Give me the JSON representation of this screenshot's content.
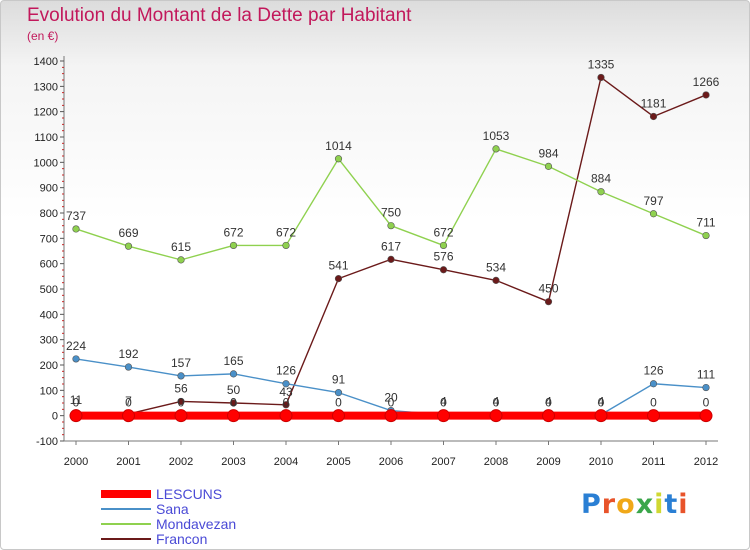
{
  "header": {
    "title": "Evolution du Montant de la Dette par Habitant",
    "unit": "(en €)"
  },
  "logo": {
    "text": "Proxiti",
    "letter_colors": [
      "#2a7fd4",
      "#e8532a",
      "#f0a818",
      "#3aa64a",
      "#d0d832",
      "#2a7fd4",
      "#e8532a"
    ]
  },
  "chart_data": {
    "type": "line",
    "title": "Evolution du Montant de la Dette par Habitant",
    "ylabel": "(en €)",
    "xlabel": "",
    "x": [
      "2000",
      "2001",
      "2002",
      "2003",
      "2004",
      "2005",
      "2006",
      "2007",
      "2008",
      "2009",
      "2010",
      "2011",
      "2012"
    ],
    "ylim": [
      -100,
      1400
    ],
    "yticks": [
      -100,
      0,
      100,
      200,
      300,
      400,
      500,
      600,
      700,
      800,
      900,
      1000,
      1100,
      1200,
      1300,
      1400
    ],
    "grid": false,
    "legend": "bottom-left",
    "series": [
      {
        "name": "LESCUNS",
        "color": "#ff0000",
        "values": [
          0,
          0,
          0,
          0,
          0,
          0,
          0,
          0,
          0,
          0,
          0,
          0,
          0
        ],
        "labels": [
          "0",
          "0",
          "0",
          "0",
          "0",
          "0",
          "0",
          "0",
          "0",
          "0",
          "0",
          "0",
          "0"
        ]
      },
      {
        "name": "Sana",
        "color": "#4a90c8",
        "values": [
          224,
          192,
          157,
          165,
          126,
          91,
          20,
          4,
          4,
          4,
          4,
          126,
          111
        ],
        "labels": [
          "224",
          "192",
          "157",
          "165",
          "126",
          "91",
          "20",
          "4",
          "4",
          "4",
          "4",
          "126",
          "111"
        ]
      },
      {
        "name": "Mondavezan",
        "color": "#8fd14f",
        "values": [
          737,
          669,
          615,
          672,
          672,
          1014,
          750,
          672,
          1053,
          984,
          884,
          797,
          711
        ],
        "labels": [
          "737",
          "669",
          "615",
          "672",
          "672",
          "1014",
          "750",
          "672",
          "1053",
          "984",
          "884",
          "797",
          "711"
        ]
      },
      {
        "name": "Francon",
        "color": "#6b1a1a",
        "values": [
          11,
          7,
          56,
          50,
          43,
          541,
          617,
          576,
          534,
          450,
          1335,
          1181,
          1266
        ],
        "labels": [
          "11",
          "7",
          "56",
          "50",
          "43",
          "541",
          "617",
          "576",
          "534",
          "450",
          "1335",
          "1181",
          "1266"
        ]
      }
    ]
  }
}
